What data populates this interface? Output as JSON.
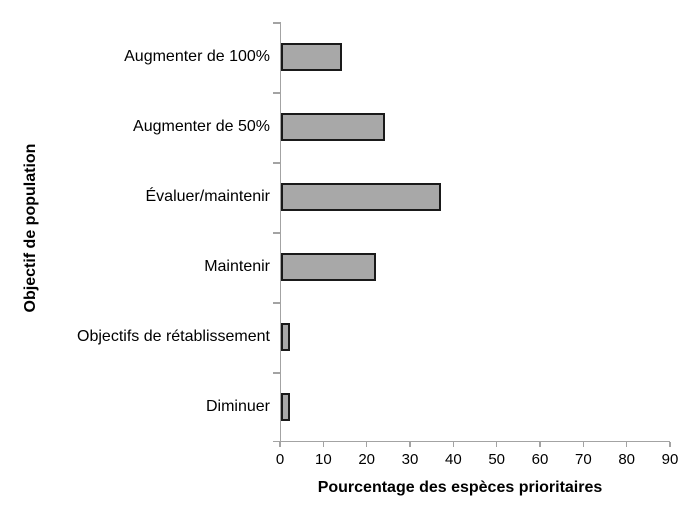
{
  "chart_data": {
    "type": "bar",
    "orientation": "horizontal",
    "title": "",
    "categories": [
      "Augmenter de 100%",
      "Augmenter de 50%",
      "Évaluer/maintenir",
      "Maintenir",
      "Objectifs de rétablissement",
      "Diminuer"
    ],
    "values": [
      14,
      24,
      37,
      22,
      2,
      2
    ],
    "xlabel": "Pourcentage des espèces prioritaires",
    "ylabel": "Objectif de population",
    "xlim": [
      0,
      90
    ],
    "xticks": [
      0,
      10,
      20,
      30,
      40,
      50,
      60,
      70,
      80,
      90
    ],
    "grid": false,
    "legend": false,
    "colors": {
      "bar_fill": "#a8a8a8",
      "bar_border": "#1a1a1a",
      "axis": "#a3a3a3",
      "text": "#000000",
      "background": "#ffffff"
    }
  }
}
